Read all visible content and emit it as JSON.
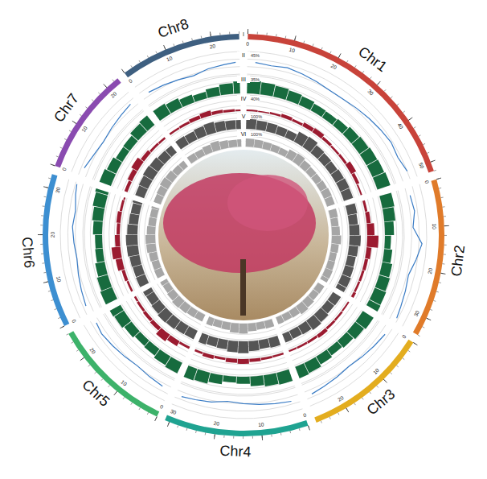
{
  "chart_data": {
    "type": "circos",
    "bin_size": 4,
    "grid": true,
    "chromosomes": [
      {
        "name": "Chr1",
        "length": 52,
        "color": "#c8433a",
        "ticks": [
          0,
          10,
          20,
          30,
          40,
          50
        ]
      },
      {
        "name": "Chr2",
        "length": 34,
        "color": "#e07b2a",
        "ticks": [
          0,
          10,
          20,
          30
        ]
      },
      {
        "name": "Chr3",
        "length": 27,
        "color": "#e3ad1f",
        "ticks": [
          0,
          10,
          20
        ]
      },
      {
        "name": "Chr4",
        "length": 31,
        "color": "#1fa391",
        "ticks": [
          0,
          10,
          20,
          30
        ]
      },
      {
        "name": "Chr5",
        "length": 26,
        "color": "#3db26a",
        "ticks": [
          0,
          10,
          20
        ]
      },
      {
        "name": "Chr6",
        "length": 33,
        "color": "#3d8fd1",
        "ticks": [
          0,
          10,
          20,
          30
        ]
      },
      {
        "name": "Chr7",
        "length": 23,
        "color": "#8a4bb0",
        "ticks": [
          0,
          10,
          20
        ]
      },
      {
        "name": "Chr8",
        "length": 26,
        "color": "#3e5f80",
        "ticks": [
          0,
          10,
          20
        ]
      }
    ],
    "tracks": [
      {
        "label": "I",
        "type": "ideogram"
      },
      {
        "label": "II",
        "type": "line",
        "color": "#3a7cc5",
        "ylim": [
          30,
          45
        ],
        "yticks": [
          {
            "value": 45,
            "label": "45%"
          }
        ],
        "values": [
          [
            38,
            37,
            38,
            37,
            36,
            35,
            35,
            36,
            37,
            38,
            39,
            38,
            40
          ],
          [
            37,
            38,
            36,
            42,
            39,
            36,
            37,
            38,
            39
          ],
          [
            38,
            37,
            36,
            35,
            36,
            37,
            38
          ],
          [
            38,
            37,
            36,
            35,
            34,
            36,
            37,
            38
          ],
          [
            37,
            36,
            35,
            36,
            37,
            38,
            37
          ],
          [
            38,
            37,
            36,
            35,
            36,
            37,
            36,
            38,
            39
          ],
          [
            38,
            36,
            35,
            36,
            37,
            38
          ],
          [
            37,
            36,
            35,
            34,
            36,
            37,
            38
          ]
        ]
      },
      {
        "label": "III",
        "type": "bar",
        "color": "#176b3e",
        "ylim": [
          0,
          35
        ],
        "yticks": [
          {
            "value": 35,
            "label": "35%"
          }
        ],
        "values": [
          [
            26,
            24,
            22,
            20,
            18,
            15,
            14,
            16,
            20,
            22,
            24,
            25,
            27
          ],
          [
            24,
            22,
            18,
            12,
            16,
            20,
            22,
            24,
            25
          ],
          [
            25,
            22,
            18,
            15,
            18,
            22,
            24
          ],
          [
            24,
            22,
            19,
            14,
            12,
            18,
            22,
            24
          ],
          [
            23,
            20,
            16,
            14,
            18,
            22,
            24
          ],
          [
            25,
            22,
            19,
            15,
            14,
            18,
            21,
            24,
            26
          ],
          [
            24,
            20,
            15,
            16,
            21,
            24
          ],
          [
            23,
            20,
            16,
            13,
            17,
            21,
            24
          ]
        ]
      },
      {
        "label": "IV",
        "type": "bar",
        "color": "#9b1b30",
        "ylim": [
          0,
          40
        ],
        "yticks": [
          {
            "value": 40,
            "label": "40%"
          }
        ],
        "values": [
          [
            4,
            3,
            5,
            8,
            6,
            10,
            12,
            7,
            5,
            6,
            14,
            8,
            4
          ],
          [
            6,
            10,
            18,
            28,
            12,
            8,
            6,
            5,
            7
          ],
          [
            4,
            5,
            6,
            9,
            6,
            5,
            4
          ],
          [
            5,
            6,
            8,
            12,
            10,
            6,
            9,
            5
          ],
          [
            6,
            14,
            20,
            10,
            8,
            6,
            5
          ],
          [
            5,
            8,
            16,
            22,
            12,
            8,
            10,
            6,
            4
          ],
          [
            8,
            12,
            18,
            10,
            6,
            5
          ],
          [
            5,
            6,
            9,
            12,
            8,
            6,
            4
          ]
        ]
      },
      {
        "label": "V",
        "type": "bar",
        "color": "#555555",
        "ylim": [
          0,
          100
        ],
        "yticks": [
          {
            "value": 100,
            "label": "100%"
          }
        ],
        "values": [
          [
            62,
            58,
            55,
            50,
            48,
            70,
            75,
            60,
            55,
            52,
            58,
            62,
            60
          ],
          [
            60,
            55,
            62,
            70,
            58,
            52,
            55,
            60,
            58
          ],
          [
            58,
            55,
            65,
            72,
            60,
            55,
            57
          ],
          [
            60,
            56,
            62,
            74,
            70,
            58,
            55,
            60
          ],
          [
            58,
            60,
            66,
            70,
            62,
            56,
            58
          ],
          [
            60,
            58,
            62,
            70,
            72,
            64,
            58,
            55,
            60
          ],
          [
            58,
            62,
            70,
            66,
            58,
            56
          ],
          [
            58,
            55,
            62,
            68,
            60,
            56,
            55
          ]
        ]
      },
      {
        "label": "VI",
        "type": "bar",
        "color": "#a6a6a6",
        "ylim": [
          0,
          100
        ],
        "yticks": [
          {
            "value": 100,
            "label": "100%"
          }
        ],
        "values": [
          [
            50,
            48,
            45,
            42,
            40,
            55,
            60,
            50,
            45,
            44,
            48,
            52,
            50
          ],
          [
            48,
            45,
            50,
            58,
            46,
            42,
            44,
            48,
            46
          ],
          [
            46,
            44,
            52,
            60,
            48,
            44,
            45
          ],
          [
            48,
            45,
            50,
            62,
            58,
            46,
            44,
            48
          ],
          [
            46,
            48,
            54,
            58,
            50,
            44,
            46
          ],
          [
            48,
            46,
            50,
            58,
            60,
            52,
            46,
            44,
            48
          ],
          [
            46,
            50,
            58,
            54,
            46,
            44
          ],
          [
            46,
            44,
            50,
            56,
            48,
            44,
            45
          ]
        ]
      }
    ]
  }
}
